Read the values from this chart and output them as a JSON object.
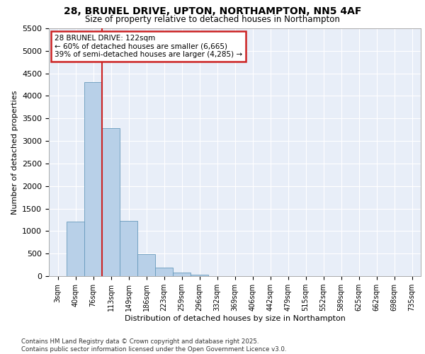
{
  "title_line1": "28, BRUNEL DRIVE, UPTON, NORTHAMPTON, NN5 4AF",
  "title_line2": "Size of property relative to detached houses in Northampton",
  "xlabel": "Distribution of detached houses by size in Northampton",
  "ylabel": "Number of detached properties",
  "categories": [
    "3sqm",
    "40sqm",
    "76sqm",
    "113sqm",
    "149sqm",
    "186sqm",
    "223sqm",
    "259sqm",
    "296sqm",
    "332sqm",
    "369sqm",
    "406sqm",
    "442sqm",
    "479sqm",
    "515sqm",
    "552sqm",
    "589sqm",
    "625sqm",
    "662sqm",
    "698sqm",
    "735sqm"
  ],
  "values": [
    0,
    1210,
    4310,
    3290,
    1220,
    490,
    195,
    75,
    25,
    5,
    2,
    1,
    0,
    0,
    0,
    0,
    0,
    0,
    0,
    0,
    0
  ],
  "bar_color": "#b8d0e8",
  "bar_edge_color": "#6699bb",
  "vline_color": "#cc2222",
  "vline_pos": 2.5,
  "annotation_title": "28 BRUNEL DRIVE: 122sqm",
  "annotation_line2": "← 60% of detached houses are smaller (6,665)",
  "annotation_line3": "39% of semi-detached houses are larger (4,285) →",
  "annotation_box_color": "#cc2222",
  "ylim": [
    0,
    5500
  ],
  "yticks": [
    0,
    500,
    1000,
    1500,
    2000,
    2500,
    3000,
    3500,
    4000,
    4500,
    5000,
    5500
  ],
  "bg_color": "#e8eef8",
  "grid_color": "#ffffff",
  "footer_line1": "Contains HM Land Registry data © Crown copyright and database right 2025.",
  "footer_line2": "Contains public sector information licensed under the Open Government Licence v3.0."
}
